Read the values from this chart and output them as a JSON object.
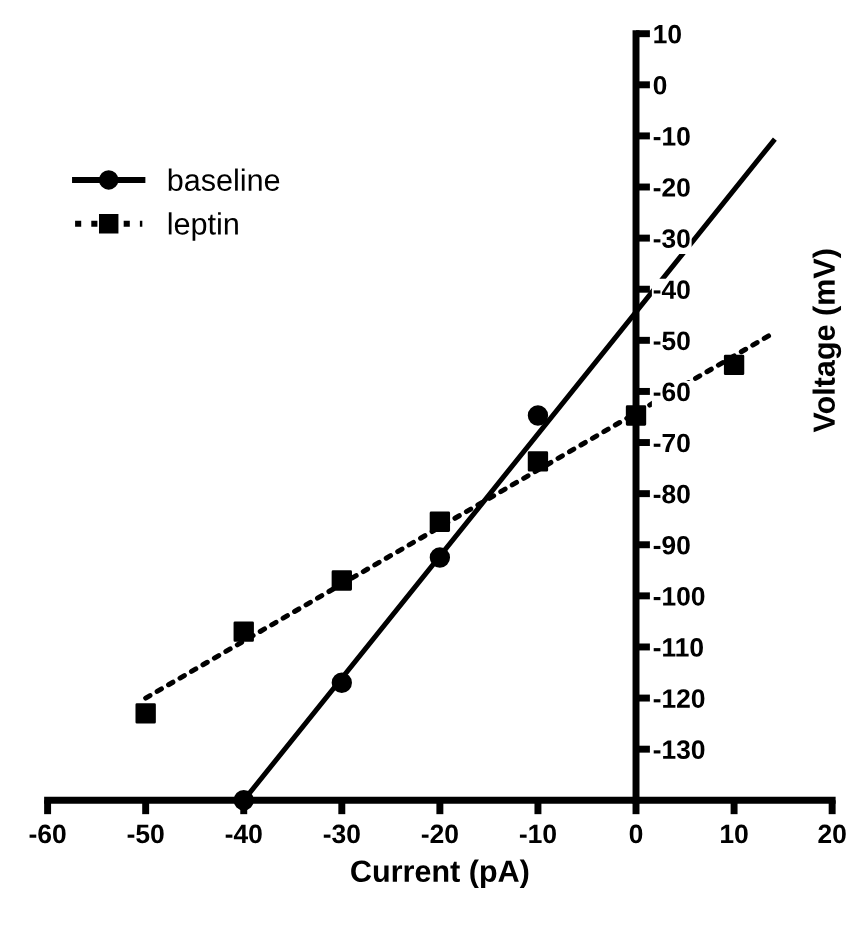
{
  "chart_data": {
    "type": "scatter",
    "xlabel": "Current (pA)",
    "ylabel": "Voltage (mV)",
    "xlim": [
      -60,
      20
    ],
    "xticks": [
      -60,
      -50,
      -40,
      -30,
      -20,
      -10,
      0,
      10,
      20
    ],
    "ylim": [
      -140,
      10
    ],
    "yticks": [
      10,
      0,
      -10,
      -20,
      -30,
      -40,
      -50,
      -60,
      -70,
      -80,
      -90,
      -100,
      -110,
      -120,
      -130
    ],
    "grid": false,
    "legend": "top left",
    "series": [
      {
        "name": "baseline",
        "color": "#000000",
        "marker": "circle",
        "line_style": "solid",
        "x": [
          -40,
          -30,
          -20,
          -10
        ],
        "values": [
          -140,
          -117,
          -92.5,
          -64.7
        ]
      },
      {
        "type": "line",
        "color": "#000000",
        "marker": "none",
        "line_style": "solid",
        "x": [
          -40,
          14
        ],
        "values": [
          -140,
          -11
        ]
      },
      {
        "name": "leptin",
        "color": "#000000",
        "marker": "square",
        "line_style": "dotted",
        "x": [
          -50,
          -40,
          -30,
          -20,
          -10,
          0,
          10
        ],
        "values": [
          -123,
          -107,
          -97,
          -85.5,
          -73.7,
          -64.7,
          -54.8
        ]
      },
      {
        "type": "line",
        "color": "#000000",
        "marker": "none",
        "line_style": "dotted",
        "x": [
          -50,
          14
        ],
        "values": [
          -120,
          -48.6
        ]
      }
    ]
  }
}
